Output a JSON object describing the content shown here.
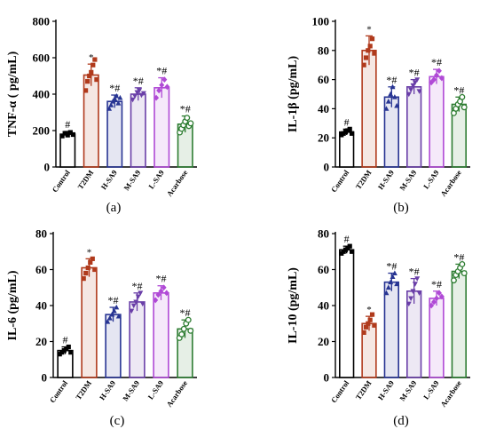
{
  "colors": {
    "Control": "#000000",
    "T2DM": "#b03a1c",
    "H-SA9": "#283593",
    "M-SA9": "#6a3fa8",
    "L-SA9": "#b04ad6",
    "Acarbose": "#2e7d32"
  },
  "chart_data": [
    {
      "type": "bar",
      "panel_label": "(a)",
      "ylabel": "TNF-α ( pg/mL)",
      "ylim": [
        0,
        800
      ],
      "yticks": [
        "0",
        "200",
        "400",
        "600",
        "800"
      ],
      "categories": [
        "Control",
        "T2DM",
        "H-SA9",
        "M-SA9",
        "L-SA9",
        "Acarbose"
      ],
      "values": [
        180,
        505,
        360,
        400,
        435,
        235
      ],
      "errors": [
        15,
        60,
        35,
        35,
        55,
        45
      ],
      "annotations": [
        "#",
        "*",
        "*#",
        "*#",
        "*#",
        "*#"
      ],
      "points": [
        [
          170,
          185,
          175,
          190,
          178
        ],
        [
          420,
          470,
          500,
          520,
          560,
          590,
          480
        ],
        [
          320,
          340,
          360,
          375,
          390,
          350,
          380
        ],
        [
          370,
          390,
          410,
          420,
          395,
          405
        ],
        [
          380,
          420,
          450,
          480,
          440
        ],
        [
          190,
          210,
          230,
          250,
          270,
          225,
          240
        ]
      ]
    },
    {
      "type": "bar",
      "panel_label": "(b)",
      "ylabel": "IL-1β (pg/mL)",
      "ylim": [
        0,
        100
      ],
      "yticks": [
        "0",
        "20",
        "40",
        "60",
        "80",
        "100"
      ],
      "categories": [
        "Control",
        "T2DM",
        "H-SA9",
        "M-SA9",
        "L-SA9",
        "Acarbose"
      ],
      "values": [
        24,
        80,
        48,
        55,
        62,
        43
      ],
      "errors": [
        2,
        10,
        7,
        5,
        5,
        5
      ],
      "annotations": [
        "#",
        "*",
        "*#",
        "*#",
        "*#",
        "*#"
      ],
      "points": [
        [
          22,
          23,
          24,
          25,
          26,
          23
        ],
        [
          70,
          75,
          80,
          83,
          88,
          78
        ],
        [
          40,
          45,
          50,
          55,
          48,
          42
        ],
        [
          50,
          53,
          56,
          58,
          60,
          52
        ],
        [
          58,
          60,
          63,
          66,
          61
        ],
        [
          37,
          40,
          43,
          45,
          48,
          41
        ]
      ]
    },
    {
      "type": "bar",
      "panel_label": "(c)",
      "ylabel": "IL-6 (pg/mL)",
      "ylim": [
        0,
        80
      ],
      "yticks": [
        "0",
        "20",
        "40",
        "60",
        "80"
      ],
      "categories": [
        "Control",
        "T2DM",
        "H-SA9",
        "M-SA9",
        "L-SA9",
        "Acarbose"
      ],
      "values": [
        15,
        61,
        35,
        42,
        47,
        27
      ],
      "errors": [
        2,
        5,
        4,
        5,
        4,
        5
      ],
      "annotations": [
        "#",
        "*",
        "*#",
        "*#",
        "*#",
        "*#"
      ],
      "points": [
        [
          13,
          14,
          15,
          16,
          17,
          14
        ],
        [
          55,
          58,
          61,
          64,
          66,
          60
        ],
        [
          31,
          33,
          35,
          37,
          39,
          34
        ],
        [
          37,
          40,
          42,
          45,
          47,
          41
        ],
        [
          43,
          46,
          48,
          50,
          47
        ],
        [
          22,
          24,
          27,
          30,
          32,
          26
        ]
      ]
    },
    {
      "type": "bar",
      "panel_label": "(d)",
      "ylabel": "IL-10 (pg/mL)",
      "ylim": [
        0,
        80
      ],
      "yticks": [
        "0",
        "20",
        "40",
        "60",
        "80"
      ],
      "categories": [
        "Control",
        "T2DM",
        "H-SA9",
        "M-SA9",
        "L-SA9",
        "Acarbose"
      ],
      "values": [
        71,
        30,
        53,
        48,
        44,
        59
      ],
      "errors": [
        2,
        4,
        5,
        7,
        4,
        4
      ],
      "annotations": [
        "#",
        "*",
        "*#",
        "*#",
        "*#",
        "*#"
      ],
      "points": [
        [
          69,
          70,
          71,
          72,
          73,
          70
        ],
        [
          25,
          28,
          30,
          32,
          35,
          29
        ],
        [
          47,
          50,
          53,
          56,
          58,
          52
        ],
        [
          41,
          44,
          48,
          52,
          55,
          47
        ],
        [
          40,
          42,
          44,
          47,
          45
        ],
        [
          54,
          57,
          59,
          61,
          63,
          58
        ]
      ]
    }
  ]
}
